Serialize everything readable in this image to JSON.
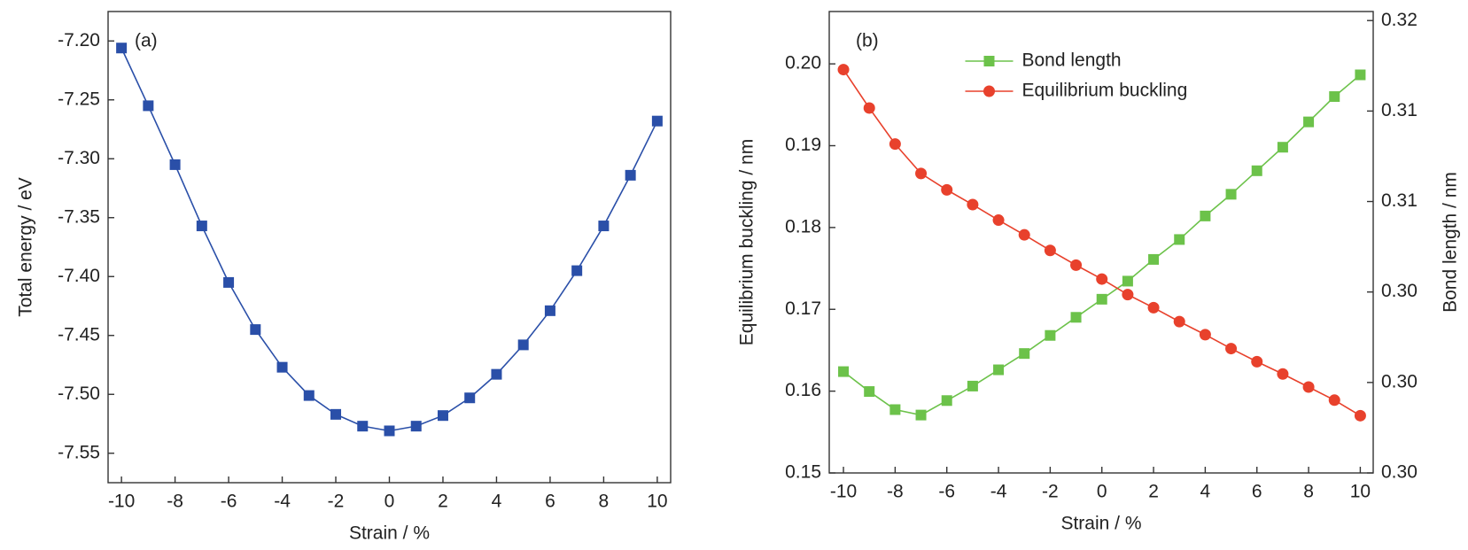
{
  "chart_data": [
    {
      "type": "line",
      "annotation": "(a)",
      "xlabel": "Strain / %",
      "ylabel": "Total energy / eV",
      "x": [
        -10,
        -9,
        -8,
        -7,
        -6,
        -5,
        -4,
        -3,
        -2,
        -1,
        0,
        1,
        2,
        3,
        4,
        5,
        6,
        7,
        8,
        9,
        10
      ],
      "series": [
        {
          "color": "#2a4fa8",
          "marker": "square",
          "values": [
            -7.206,
            -7.255,
            -7.305,
            -7.357,
            -7.405,
            -7.445,
            -7.477,
            -7.501,
            -7.517,
            -7.527,
            -7.531,
            -7.527,
            -7.518,
            -7.503,
            -7.483,
            -7.458,
            -7.429,
            -7.395,
            -7.357,
            -7.314,
            -7.268
          ]
        }
      ],
      "xlim": [
        -10.5,
        10.5
      ],
      "xticks": [
        -10,
        -8,
        -6,
        -4,
        -2,
        0,
        2,
        4,
        6,
        8,
        10
      ],
      "ylim": [
        -7.575,
        -7.175
      ],
      "yticks": [
        {
          "value": -7.2,
          "label": "-7.20"
        },
        -7.25,
        {
          "value": -7.3,
          "label": "-7.30"
        },
        -7.35,
        {
          "value": -7.4,
          "label": "-7.40"
        },
        -7.45,
        {
          "value": -7.5,
          "label": "-7.50"
        },
        -7.55
      ]
    },
    {
      "type": "line",
      "annotation": "(b)",
      "xlabel": "Strain / %",
      "ylabel": "Equilibrium buckling / nm",
      "y2label": "Bond length / nm",
      "legend": "upper center",
      "x": [
        -10,
        -9,
        -8,
        -7,
        -6,
        -5,
        -4,
        -3,
        -2,
        -1,
        0,
        1,
        2,
        3,
        4,
        5,
        6,
        7,
        8,
        9,
        10
      ],
      "series": [
        {
          "name": "Bond length",
          "color": "#6cc24a",
          "marker": "square",
          "axis": "y2",
          "values": [
            0.3006,
            0.2995,
            0.2985,
            0.2982,
            0.299,
            0.2998,
            0.3007,
            0.3016,
            0.3026,
            0.3036,
            0.3046,
            0.3056,
            0.3068,
            0.3079,
            0.3092,
            0.3104,
            0.3117,
            0.313,
            0.3144,
            0.3158,
            0.317
          ]
        },
        {
          "name": "Equilibrium buckling",
          "color": "#e8412c",
          "marker": "circle",
          "values": [
            0.1993,
            0.1946,
            0.1902,
            0.1866,
            0.1846,
            0.1828,
            0.1809,
            0.1791,
            0.1772,
            0.1754,
            0.1737,
            0.1718,
            0.1702,
            0.1685,
            0.1669,
            0.1652,
            0.1636,
            0.1621,
            0.1605,
            0.1589,
            0.157
          ]
        }
      ],
      "xlim": [
        -10.55,
        10.5
      ],
      "xticks": [
        -10,
        -8,
        -6,
        -4,
        -2,
        0,
        2,
        4,
        6,
        8,
        10
      ],
      "ylim": [
        0.15,
        0.2064
      ],
      "yticks": [
        0.15,
        0.16,
        0.17,
        0.18,
        0.19,
        {
          "value": 0.2,
          "label": "0.20"
        }
      ],
      "y2lim": [
        0.295,
        0.3205
      ],
      "y2ticks": [
        {
          "value": 0.295,
          "label": "0.30"
        },
        {
          "value": 0.3,
          "label": "0.30"
        },
        {
          "value": 0.305,
          "label": "0.30"
        },
        {
          "value": 0.31,
          "label": "0.31"
        },
        {
          "value": 0.315,
          "label": "0.31"
        },
        {
          "value": 0.32,
          "label": "0.32"
        }
      ]
    }
  ]
}
